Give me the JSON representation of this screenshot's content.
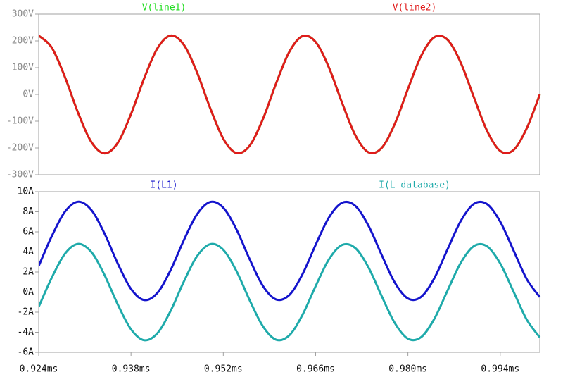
{
  "chart_data": [
    {
      "type": "line",
      "x": [
        0.924,
        0.926,
        0.928,
        0.93,
        0.932,
        0.934,
        0.936,
        0.938,
        0.94,
        0.942,
        0.944,
        0.946,
        0.948,
        0.95,
        0.952,
        0.954,
        0.956,
        0.958,
        0.96,
        0.962,
        0.964,
        0.966,
        0.968,
        0.97,
        0.972,
        0.974,
        0.976,
        0.978,
        0.98,
        0.982,
        0.984,
        0.986,
        0.988,
        0.99,
        0.992,
        0.994,
        0.996,
        0.998,
        1.0
      ],
      "xlim": [
        0.924,
        1.0
      ],
      "ylim": [
        -300,
        300
      ],
      "yticks": [
        {
          "value": -300,
          "label": "-300V"
        },
        {
          "value": -200,
          "label": "-200V"
        },
        {
          "value": -100,
          "label": "-100V"
        },
        {
          "value": 0,
          "label": "0V"
        },
        {
          "value": 100,
          "label": "100V"
        },
        {
          "value": 200,
          "label": "200V"
        },
        {
          "value": 300,
          "label": "300V"
        }
      ],
      "series": [
        {
          "name": "V(line1)",
          "color": "#22dd22",
          "values": [
            219.8,
            174.1,
            63.7,
            -70.3,
            -178.2,
            -220.0,
            -180.2,
            -73.4,
            60.5,
            172.0,
            219.7,
            185.8,
            83.0,
            -50.6,
            -165.4,
            -218.9,
            -191.1,
            -92.4,
            40.6,
            158.6,
            217.6,
            195.9,
            101.6,
            -30.5,
            -151.3,
            -215.9,
            -200.4,
            -110.5,
            20.4,
            143.7,
            213.7,
            204.4,
            119.2,
            -10.2,
            -135.8,
            -211.0,
            -207.9,
            -127.7,
            0
          ]
        },
        {
          "name": "V(line2)",
          "color": "#e01b1b",
          "values": [
            219.8,
            174.1,
            63.7,
            -70.3,
            -178.2,
            -220.0,
            -180.2,
            -73.4,
            60.5,
            172.0,
            219.7,
            185.8,
            83.0,
            -50.6,
            -165.4,
            -218.9,
            -191.1,
            -92.4,
            40.6,
            158.6,
            217.6,
            195.9,
            101.6,
            -30.5,
            -151.3,
            -215.9,
            -200.4,
            -110.5,
            20.4,
            143.7,
            213.7,
            204.4,
            119.2,
            -10.2,
            -135.8,
            -211.0,
            -207.9,
            -127.7,
            0
          ]
        }
      ]
    },
    {
      "type": "line",
      "x": [
        0.924,
        0.926,
        0.928,
        0.93,
        0.932,
        0.934,
        0.936,
        0.938,
        0.94,
        0.942,
        0.944,
        0.946,
        0.948,
        0.95,
        0.952,
        0.954,
        0.956,
        0.958,
        0.96,
        0.962,
        0.964,
        0.966,
        0.968,
        0.97,
        0.972,
        0.974,
        0.976,
        0.978,
        0.98,
        0.982,
        0.984,
        0.986,
        0.988,
        0.99,
        0.992,
        0.994,
        0.996,
        0.998,
        1.0
      ],
      "xlim": [
        0.924,
        1.0
      ],
      "xticks": [
        {
          "value": 0.924,
          "label": "0.924ms"
        },
        {
          "value": 0.938,
          "label": "0.938ms"
        },
        {
          "value": 0.952,
          "label": "0.952ms"
        },
        {
          "value": 0.966,
          "label": "0.966ms"
        },
        {
          "value": 0.98,
          "label": "0.980ms"
        },
        {
          "value": 0.994,
          "label": "0.994ms"
        }
      ],
      "ylim": [
        -6,
        10
      ],
      "yticks": [
        {
          "value": -6,
          "label": "-6A"
        },
        {
          "value": -4,
          "label": "-4A"
        },
        {
          "value": -2,
          "label": "-2A"
        },
        {
          "value": 0,
          "label": "0A"
        },
        {
          "value": 2,
          "label": "2A"
        },
        {
          "value": 4,
          "label": "4A"
        },
        {
          "value": 6,
          "label": "6A"
        },
        {
          "value": 8,
          "label": "8A"
        },
        {
          "value": 10,
          "label": "10A"
        }
      ],
      "series": [
        {
          "name": "I(L1)",
          "color": "#1414cc",
          "values": [
            2.6,
            5.59,
            8.02,
            9.0,
            8.16,
            5.81,
            2.83,
            0.32,
            -0.79,
            -0.08,
            2.18,
            5.15,
            7.73,
            8.97,
            8.4,
            6.23,
            3.27,
            0.62,
            -0.73,
            -0.3,
            1.77,
            4.7,
            7.41,
            8.89,
            8.6,
            6.63,
            3.73,
            0.96,
            -0.64,
            -0.48,
            1.38,
            4.25,
            7.06,
            8.78,
            8.76,
            7.01,
            4.18,
            1.32,
            -0.5
          ]
        },
        {
          "name": "I(L_database)",
          "color": "#1eaaaa",
          "values": [
            -1.47,
            1.46,
            3.84,
            4.8,
            3.98,
            1.68,
            -1.24,
            -3.7,
            -4.79,
            -4.1,
            -1.88,
            1.03,
            3.56,
            4.77,
            4.21,
            2.09,
            -0.81,
            -3.4,
            -4.74,
            -4.31,
            -2.28,
            0.59,
            3.24,
            4.69,
            4.4,
            2.48,
            -0.37,
            -3.07,
            -4.64,
            -4.49,
            -2.67,
            0.14,
            2.9,
            4.58,
            4.56,
            2.85,
            0.08,
            -2.72,
            -4.51
          ]
        }
      ]
    }
  ]
}
